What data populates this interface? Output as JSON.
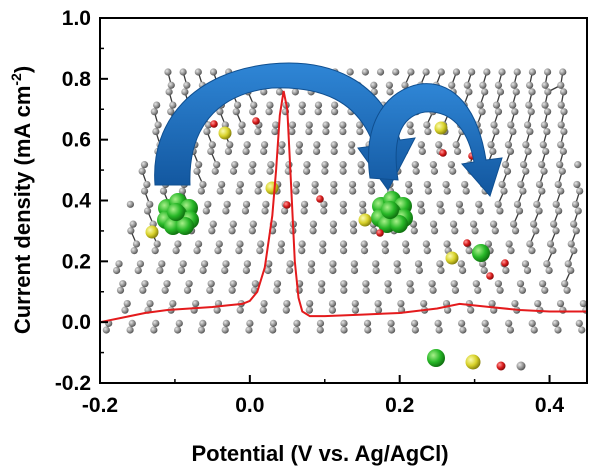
{
  "chart_data": {
    "type": "line",
    "title": "",
    "xlabel": "Potential (V vs. Ag/AgCl)",
    "ylabel_main": "Current density (mA cm",
    "ylabel_sup": "-2",
    "ylabel_close": ")",
    "xlim": [
      -0.2,
      0.45
    ],
    "ylim": [
      -0.2,
      1.0
    ],
    "xticks": [
      -0.2,
      0.0,
      0.2,
      0.4
    ],
    "xtick_labels": [
      "-0.2",
      "0.0",
      "0.2",
      "0.4"
    ],
    "yticks": [
      -0.2,
      0.0,
      0.2,
      0.4,
      0.6,
      0.8,
      1.0
    ],
    "ytick_labels": [
      "-0.2",
      "0.0",
      "0.2",
      "0.4",
      "0.6",
      "0.8",
      "1.0"
    ],
    "grid": false,
    "series": [
      {
        "color": "#e41a1c",
        "x": [
          -0.2,
          -0.17,
          -0.14,
          -0.11,
          -0.08,
          -0.05,
          -0.03,
          -0.01,
          0.0,
          0.01,
          0.02,
          0.03,
          0.035,
          0.04,
          0.045,
          0.05,
          0.055,
          0.06,
          0.065,
          0.07,
          0.08,
          0.1,
          0.15,
          0.2,
          0.25,
          0.28,
          0.32,
          0.36,
          0.4,
          0.45
        ],
        "y": [
          0.0,
          0.015,
          0.03,
          0.04,
          0.045,
          0.05,
          0.055,
          0.06,
          0.07,
          0.1,
          0.18,
          0.35,
          0.5,
          0.68,
          0.76,
          0.7,
          0.45,
          0.2,
          0.08,
          0.035,
          0.02,
          0.02,
          0.025,
          0.03,
          0.045,
          0.06,
          0.05,
          0.04,
          0.035,
          0.035
        ]
      }
    ]
  },
  "colors": {
    "line": "#e41a1c",
    "arrow": "#1d6fbf",
    "carbon_atom": "#8c8c8c",
    "bond": "#3a3a3a",
    "green_cluster": "#2db82d",
    "yellow_atom": "#d6d12a",
    "red_atom": "#d41c1c"
  }
}
